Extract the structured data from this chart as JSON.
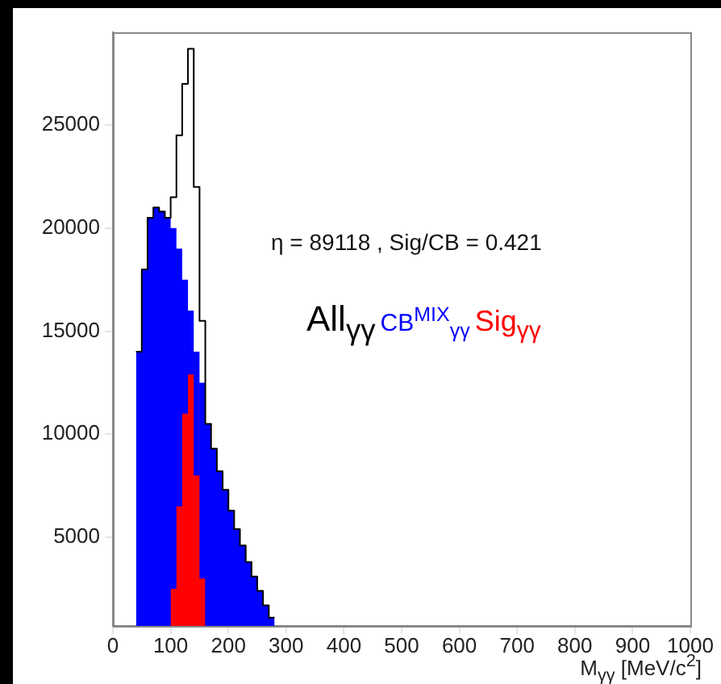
{
  "chart_data": {
    "type": "histogram",
    "xlabel": "M$_{γγ}$ [MeV/c$^{2}$]",
    "bins": [
      40,
      50,
      60,
      70,
      80,
      90,
      100,
      110,
      120,
      130,
      140,
      150,
      160,
      170,
      180,
      190,
      200,
      210,
      220,
      230,
      240,
      250,
      260,
      270,
      280
    ],
    "series": [
      {
        "name": "All$_{γγ}$",
        "type": "step",
        "color": "#000000",
        "x": [
          40,
          50,
          60,
          70,
          80,
          90,
          100,
          110,
          120,
          130,
          140,
          150,
          160,
          170,
          180,
          190,
          200,
          210,
          220,
          230,
          240,
          250,
          260,
          270,
          280
        ],
        "values": [
          14000,
          18000,
          20500,
          21000,
          20800,
          20500,
          21500,
          24500,
          27000,
          28700,
          22000,
          15500,
          10500,
          9300,
          8200,
          7300,
          6300,
          5400,
          4600,
          3800,
          3100,
          2400,
          1700,
          1100,
          1100
        ]
      },
      {
        "name": "CB$^{MIX}$$_{γγ}$",
        "type": "histogram",
        "color": "#0000ff",
        "values": [
          14000,
          18000,
          20500,
          21000,
          20800,
          20500,
          20000,
          19000,
          17500,
          16000,
          14000,
          12500,
          10500,
          9300,
          8200,
          7300,
          6300,
          5400,
          4600,
          3800,
          3100,
          2400,
          1700,
          1100
        ]
      },
      {
        "name": "Sig$_{γγ}$",
        "type": "histogram",
        "color": "#ff0000",
        "bins": [
          100,
          110,
          120,
          130,
          140,
          150,
          160
        ],
        "values": [
          2500,
          6500,
          11000,
          12900,
          8000,
          3000
        ]
      }
    ],
    "xlim": [
      0,
      1000
    ],
    "ylim": [
      700,
      29500
    ],
    "xticks": [
      0,
      100,
      200,
      300,
      400,
      500,
      600,
      700,
      800,
      900,
      1000
    ],
    "yticks": [
      5000,
      10000,
      15000,
      20000,
      25000
    ],
    "legend": "right",
    "annotations": [
      "η = 89118 , Sig/CB = 0.421"
    ]
  }
}
